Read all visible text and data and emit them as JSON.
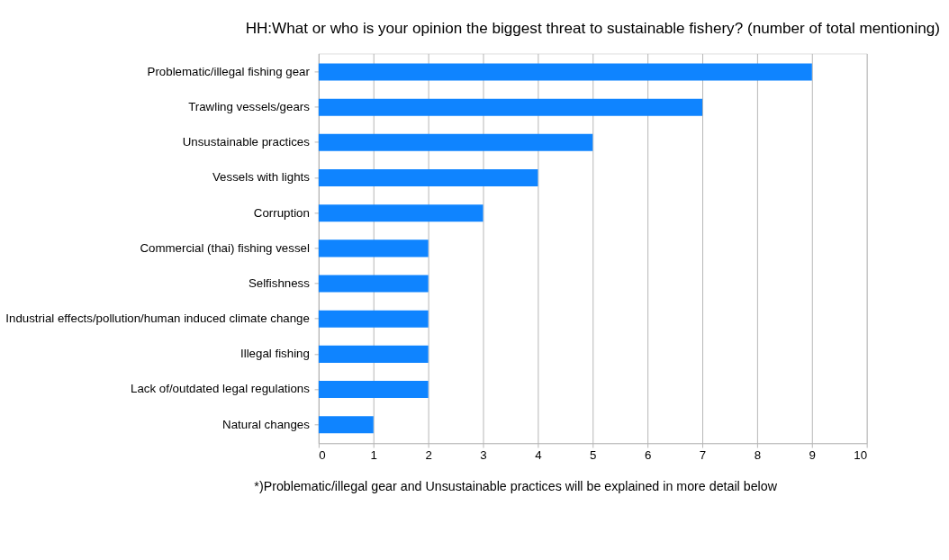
{
  "chart_data": {
    "type": "bar",
    "orientation": "horizontal",
    "title": "HH:What or who is your opinion the biggest threat to sustainable fishery? (number of total mentioning)",
    "categories": [
      "Problematic/illegal fishing gear",
      "Trawling vessels/gears",
      "Unsustainable practices",
      "Vessels with lights",
      "Corruption",
      "Commercial (thai) fishing vessel",
      "Selfishness",
      "Industrial effects/pollution/human induced climate change",
      "Illegal fishing",
      "Lack of/outdated legal regulations",
      "Natural changes"
    ],
    "values": [
      9,
      7,
      5,
      4,
      3,
      2,
      2,
      2,
      2,
      2,
      1
    ],
    "color": "#0f84ff",
    "xlim": [
      0,
      10
    ],
    "xticks": [
      0,
      1,
      2,
      3,
      4,
      5,
      6,
      7,
      8,
      9,
      10
    ],
    "grid": "x",
    "annotations": [
      "*)Problematic/illegal gear and Unsustainable practices will be explained in more detail below"
    ]
  }
}
